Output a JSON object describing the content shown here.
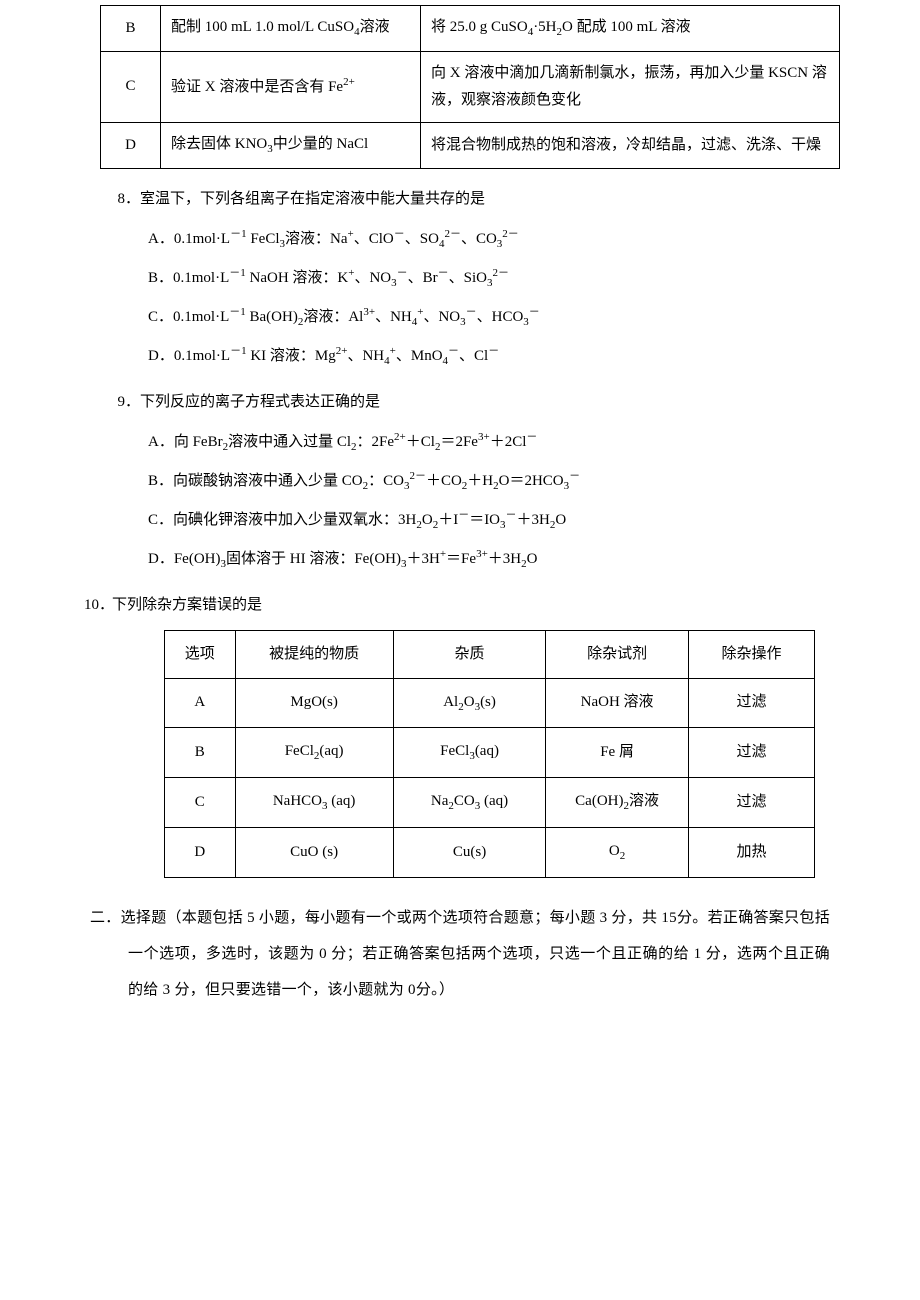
{
  "table1": {
    "rows": [
      {
        "opt": "B",
        "purpose": "配制 100 mL 1.0 mol/L CuSO<sub>4</sub>溶液",
        "method": "将 25.0 g CuSO<sub>4</sub>·5H<sub>2</sub>O 配成 100 mL 溶液"
      },
      {
        "opt": "C",
        "purpose": "验证 X 溶液中是否含有 Fe<sup>2+</sup>",
        "method": "向 X 溶液中滴加几滴新制氯水，振荡，再加入少量 KSCN 溶液，观察溶液颜色变化"
      },
      {
        "opt": "D",
        "purpose": "除去固体 KNO<sub>3</sub>中少量的 NaCl",
        "method": "将混合物制成热的饱和溶液，冷却结晶，过滤、洗涤、干燥"
      }
    ]
  },
  "q8": {
    "num": "8．",
    "stem": "室温下，下列各组离子在指定溶液中能大量共存的是",
    "opts": [
      "A．0.1mol·L<sup>－1</sup> FeCl<sub>3</sub>溶液：Na<sup>+</sup>、ClO<sup>－</sup>、SO<sub>4</sub><sup>2－</sup>、CO<sub>3</sub><sup>2－</sup>",
      "B．0.1mol·L<sup>－1</sup> NaOH 溶液：K<sup>+</sup>、NO<sub>3</sub><sup>－</sup>、Br<sup>－</sup>、SiO<sub>3</sub><sup>2－</sup>",
      "C．0.1mol·L<sup>－1</sup> Ba(OH)<sub>2</sub>溶液：Al<sup>3+</sup>、NH<sub>4</sub><sup>+</sup>、NO<sub>3</sub><sup>－</sup>、HCO<sub>3</sub><sup>－</sup>",
      "D．0.1mol·L<sup>－1</sup> KI 溶液：Mg<sup>2+</sup>、NH<sub>4</sub><sup>+</sup>、MnO<sub>4</sub><sup>－</sup>、Cl<sup>－</sup>"
    ]
  },
  "q9": {
    "num": "9．",
    "stem": "下列反应的离子方程式表达正确的是",
    "opts": [
      "A．向 FeBr<sub>2</sub>溶液中通入过量 Cl<sub>2</sub>：2Fe<sup>2+</sup>＋Cl<sub>2</sub>＝2Fe<sup>3+</sup>＋2Cl<sup>－</sup>",
      "B．向碳酸钠溶液中通入少量 CO<sub>2</sub>：CO<sub>3</sub><sup>2－</sup>＋CO<sub>2</sub>＋H<sub>2</sub>O＝2HCO<sub>3</sub><sup>－</sup>",
      "C．向碘化钾溶液中加入少量双氧水：3H<sub>2</sub>O<sub>2</sub>＋I<sup>－</sup>＝IO<sub>3</sub><sup>－</sup>＋3H<sub>2</sub>O",
      "D．Fe(OH)<sub>3</sub>固体溶于 HI 溶液：Fe(OH)<sub>3</sub>＋3H<sup>+</sup>＝Fe<sup>3+</sup>＋3H<sub>2</sub>O"
    ]
  },
  "q10": {
    "num": "10．",
    "stem": "下列除杂方案错误的是",
    "headers": [
      "选项",
      "被提纯的物质",
      "杂质",
      "除杂试剂",
      "除杂操作"
    ],
    "rows": [
      [
        "A",
        "MgO(s)",
        "Al<sub>2</sub>O<sub>3</sub>(s)",
        "NaOH 溶液",
        "过滤"
      ],
      [
        "B",
        "FeCl<sub>2</sub>(aq)",
        "FeCl<sub>3</sub>(aq)",
        "Fe 屑",
        "过滤"
      ],
      [
        "C",
        "NaHCO<sub>3</sub>&nbsp;(aq)",
        "Na<sub>2</sub>CO<sub>3</sub>&nbsp;(aq)",
        "Ca(OH)<sub>2</sub>溶液",
        "过滤"
      ],
      [
        "D",
        "CuO (s)",
        "Cu(s)",
        "O<sub>2</sub>",
        "加热"
      ]
    ]
  },
  "section2": {
    "label": "二．",
    "text": "选择题（本题包括 5 小题，每小题有一个或两个选项符合题意；每小题 3 分，共 15分。若正确答案只包括一个选项，多选时，该题为 0 分；若正确答案包括两个选项，只选一个且正确的给 1 分，选两个且正确的给 3 分，但只要选错一个，该小题就为 0分。）"
  }
}
